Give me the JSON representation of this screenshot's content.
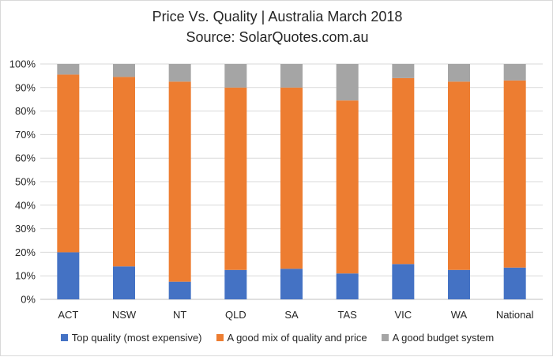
{
  "chart_data": {
    "type": "bar",
    "stacked": true,
    "title": "Price Vs. Quality | Australia March 2018",
    "subtitle": "Source: SolarQuotes.com.au",
    "categories": [
      "ACT",
      "NSW",
      "NT",
      "QLD",
      "SA",
      "TAS",
      "VIC",
      "WA",
      "National"
    ],
    "ylim": [
      0,
      100
    ],
    "yticks": [
      "0%",
      "10%",
      "20%",
      "30%",
      "40%",
      "50%",
      "60%",
      "70%",
      "80%",
      "90%",
      "100%"
    ],
    "grid": true,
    "legend_position": "bottom",
    "series": [
      {
        "name": "Top quality (most expensive)",
        "color": "#4472c4",
        "values": [
          20,
          14,
          7.5,
          12.5,
          13,
          11,
          15,
          12.5,
          13.5
        ]
      },
      {
        "name": "A good mix of quality and price",
        "color": "#ed7d31",
        "values": [
          75.5,
          80.5,
          85,
          77.5,
          77,
          73.5,
          79,
          80,
          79.5
        ]
      },
      {
        "name": "A good budget system",
        "color": "#a5a5a5",
        "values": [
          4.5,
          5.5,
          7.5,
          10,
          10,
          15.5,
          6,
          7.5,
          7
        ]
      }
    ]
  }
}
